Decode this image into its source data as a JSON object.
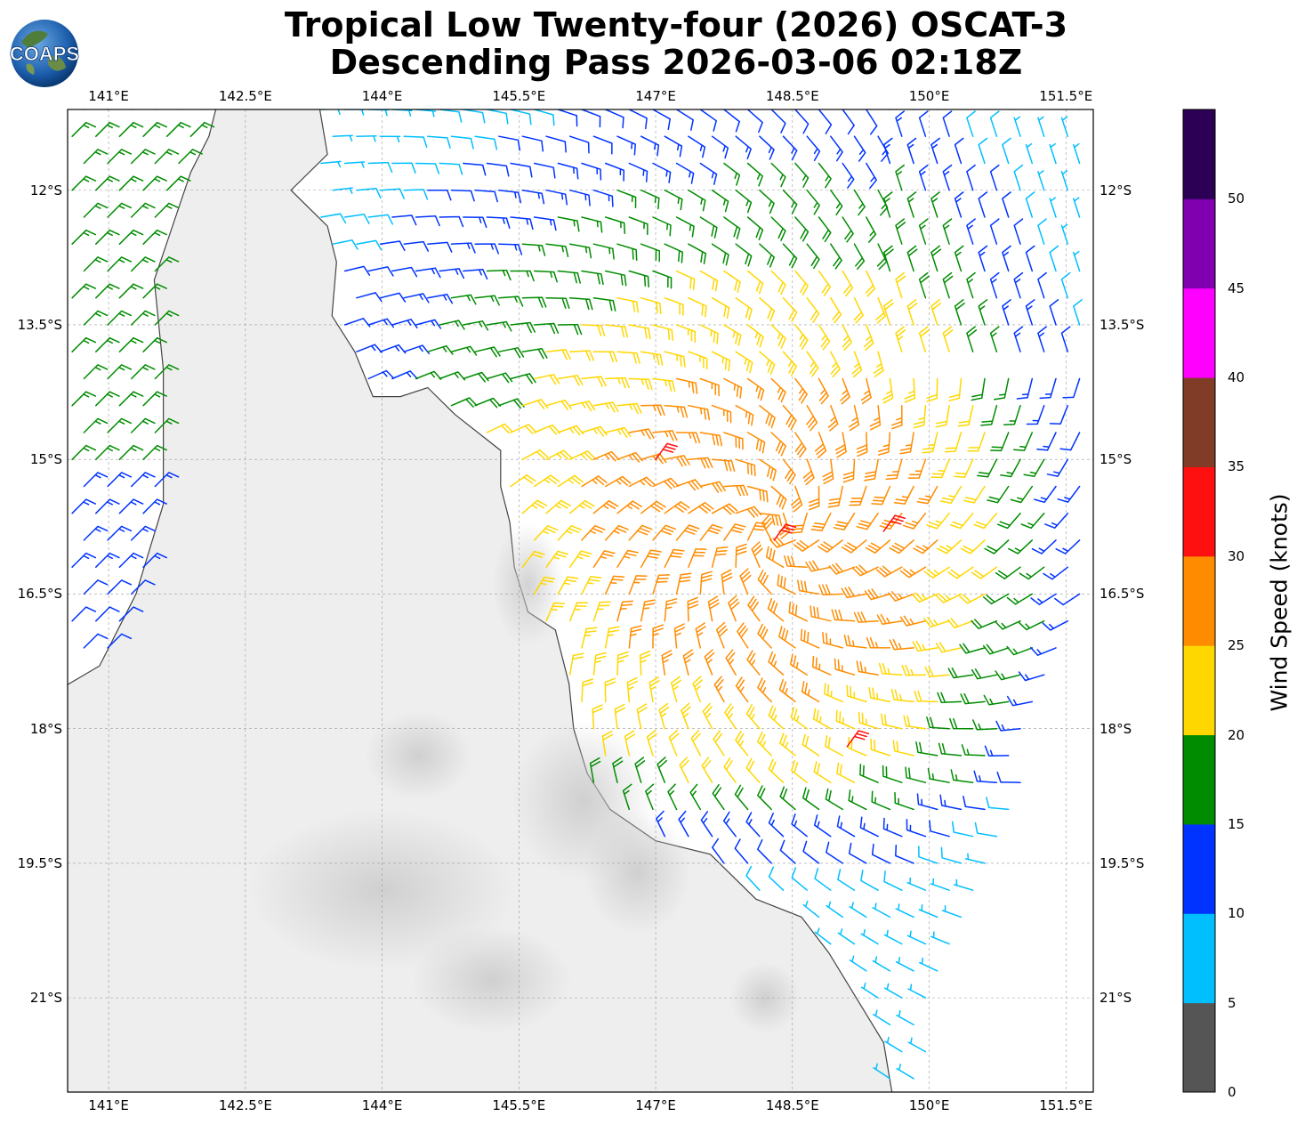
{
  "header": {
    "title_line1": "Tropical Low Twenty-four (2026) OSCAT-3",
    "title_line2": "Descending Pass 2026-03-06 02:18Z",
    "logo_text": "COAPS"
  },
  "map": {
    "extent": {
      "lon_min": 140.55,
      "lon_max": 151.8,
      "lat_min": -22.05,
      "lat_max": -11.1
    },
    "lon_ticks": [
      141,
      142.5,
      144,
      145.5,
      147,
      148.5,
      150,
      151.5
    ],
    "lat_ticks": [
      -12,
      -13.5,
      -15,
      -16.5,
      -18,
      -19.5,
      -21
    ],
    "lon_labels": [
      "141°E",
      "142.5°E",
      "144°E",
      "145.5°E",
      "147°E",
      "148.5°E",
      "150°E",
      "151.5°E"
    ],
    "lat_labels": [
      "12°S",
      "13.5°S",
      "15°S",
      "16.5°S",
      "18°S",
      "19.5°S",
      "21°S"
    ],
    "land_color": "#eeeeee",
    "ocean_color": "#ffffff",
    "coast_color": "#444444",
    "grid": true
  },
  "colorbar": {
    "label": "Wind Speed (knots)",
    "ticks": [
      "0",
      "5",
      "10",
      "15",
      "20",
      "25",
      "30",
      "35",
      "40",
      "45",
      "50"
    ],
    "bins": [
      {
        "min": 0,
        "max": 5,
        "color": "#555555"
      },
      {
        "min": 5,
        "max": 10,
        "color": "#00bfff"
      },
      {
        "min": 10,
        "max": 15,
        "color": "#0033ff"
      },
      {
        "min": 15,
        "max": 20,
        "color": "#008c00"
      },
      {
        "min": 20,
        "max": 25,
        "color": "#ffd700"
      },
      {
        "min": 25,
        "max": 30,
        "color": "#ff8c00"
      },
      {
        "min": 30,
        "max": 35,
        "color": "#ff1010"
      },
      {
        "min": 35,
        "max": 40,
        "color": "#803c26"
      },
      {
        "min": 40,
        "max": 45,
        "color": "#ff00ff"
      },
      {
        "min": 45,
        "max": 50,
        "color": "#8000b0"
      },
      {
        "min": 50,
        "max": 55,
        "color": "#2b0055"
      }
    ]
  },
  "chart_data": {
    "type": "wind barbs",
    "units": "knots",
    "center_lon": 148.3,
    "center_lat": -15.8,
    "max_wind_kt": 33,
    "barbs_est": [
      {
        "lon": 147.0,
        "lat": -15.0,
        "speed": 31
      },
      {
        "lon": 148.3,
        "lat": -15.9,
        "speed": 32
      },
      {
        "lon": 149.5,
        "lat": -15.8,
        "speed": 32
      },
      {
        "lon": 149.1,
        "lat": -18.2,
        "speed": 31
      }
    ]
  }
}
